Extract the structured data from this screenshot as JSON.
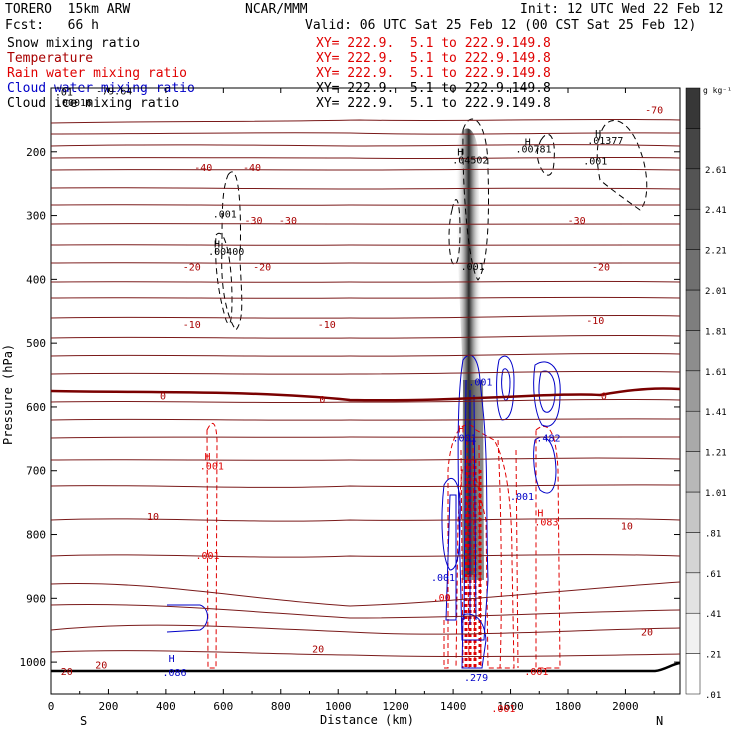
{
  "header": {
    "model": "TORERO  15km ARW",
    "center": "NCAR/MMM",
    "init": "Init: 12 UTC Wed 22 Feb 12",
    "fcst": "Fcst:   66 h",
    "valid": "Valid: 06 UTC Sat 25 Feb 12 (00 CST Sat 25 Feb 12)"
  },
  "fields": [
    {
      "name": "Snow mixing ratio",
      "xy": "XY= 222.9.  5.1 to 222.9.149.8",
      "color": "#000000"
    },
    {
      "name": "Temperature",
      "xy": "XY= 222.9.  5.1 to 222.9.149.8",
      "color": "#a80000"
    },
    {
      "name": "Rain water mixing ratio",
      "xy": "XY= 222.9.  5.1 to 222.9.149.8",
      "color": "#e00000"
    },
    {
      "name": "Cloud water mixing ratio",
      "xy": "XY= 222.9.  5.1 to 222.9.149.8",
      "color": "#0000c8"
    },
    {
      "name": "Cloud ice mixing ratio",
      "xy": "XY= 222.9.  5.1 to 222.9.149.8",
      "color": "#000000"
    }
  ],
  "chart_data": {
    "type": "cross-section",
    "xlabel": "Distance (km)",
    "ylabel": "Pressure (hPa)",
    "xlim": [
      0,
      2190
    ],
    "ylim": [
      1050,
      100
    ],
    "x_ticks": [
      0,
      200,
      400,
      600,
      800,
      1000,
      1200,
      1400,
      1600,
      1800,
      2000
    ],
    "y_ticks": [
      200,
      300,
      400,
      500,
      600,
      700,
      800,
      900,
      1000
    ],
    "left_end": "S",
    "right_end": "N",
    "colorbar": {
      "unit": "g kg⁻¹",
      "levels": [
        ".01",
        ".21",
        ".41",
        ".61",
        ".81",
        "1.01",
        "1.21",
        "1.41",
        "1.61",
        "1.81",
        "2.01",
        "2.21",
        "2.41",
        "2.61"
      ]
    },
    "temperature_contours": [
      {
        "label": "-70",
        "pressure": 135
      },
      {
        "label": "-40",
        "pressure": 230
      },
      {
        "label": "-30",
        "pressure": 313
      },
      {
        "label": "-20",
        "pressure": 387
      },
      {
        "label": "-10",
        "pressure": 476
      },
      {
        "label": "0",
        "pressure": 590
      },
      {
        "label": "10",
        "pressure": 735
      },
      {
        "label": "20",
        "pressure": 915
      }
    ],
    "annotations": [
      {
        "text": "-79.64",
        "x": 220,
        "p": 110,
        "color": "#000000"
      },
      {
        "text": "-70",
        "x": 2100,
        "p": 140,
        "color": "#a80000"
      },
      {
        "text": ".01",
        "x": 45,
        "p": 112,
        "color": "#000000"
      },
      {
        "text": ".00016",
        "x": 80,
        "p": 128,
        "color": "#000000"
      },
      {
        "text": "H",
        "x": 1425,
        "p": 206,
        "color": "#000000"
      },
      {
        "text": ".04502",
        "x": 1460,
        "p": 218,
        "color": "#000000"
      },
      {
        "text": "H",
        "x": 1660,
        "p": 190,
        "color": "#000000"
      },
      {
        "text": ".00781",
        "x": 1680,
        "p": 201,
        "color": "#000000"
      },
      {
        "text": "H",
        "x": 1905,
        "p": 177,
        "color": "#000000"
      },
      {
        "text": ".01377",
        "x": 1930,
        "p": 188,
        "color": "#000000"
      },
      {
        "text": ".001",
        "x": 1895,
        "p": 220,
        "color": "#000000"
      },
      {
        "text": "-40",
        "x": 530,
        "p": 230,
        "color": "#a80000"
      },
      {
        "text": "-40",
        "x": 700,
        "p": 230,
        "color": "#a80000"
      },
      {
        "text": ".001",
        "x": 605,
        "p": 303,
        "color": "#000000"
      },
      {
        "text": "-30",
        "x": 705,
        "p": 313,
        "color": "#a80000"
      },
      {
        "text": "-30",
        "x": 825,
        "p": 313,
        "color": "#a80000"
      },
      {
        "text": "-30",
        "x": 1830,
        "p": 313,
        "color": "#a80000"
      },
      {
        "text": "H",
        "x": 578,
        "p": 350,
        "color": "#000000"
      },
      {
        "text": ".00400",
        "x": 610,
        "p": 362,
        "color": "#000000"
      },
      {
        "text": "-20",
        "x": 490,
        "p": 386,
        "color": "#a80000"
      },
      {
        "text": "-20",
        "x": 735,
        "p": 386,
        "color": "#a80000"
      },
      {
        "text": "-20",
        "x": 1915,
        "p": 386,
        "color": "#a80000"
      },
      {
        "text": ".001",
        "x": 1468,
        "p": 385,
        "color": "#000000"
      },
      {
        "text": "-10",
        "x": 490,
        "p": 476,
        "color": "#a80000"
      },
      {
        "text": "-10",
        "x": 960,
        "p": 476,
        "color": "#a80000"
      },
      {
        "text": "-10",
        "x": 1895,
        "p": 470,
        "color": "#a80000"
      },
      {
        "text": ".001",
        "x": 1495,
        "p": 566,
        "color": "#0000c8"
      },
      {
        "text": "0",
        "x": 390,
        "p": 588,
        "color": "#a80000"
      },
      {
        "text": "0",
        "x": 945,
        "p": 594,
        "color": "#a80000"
      },
      {
        "text": "0",
        "x": 1925,
        "p": 588,
        "color": "#a80000"
      },
      {
        "text": "H",
        "x": 1428,
        "p": 640,
        "color": "#e00000"
      },
      {
        "text": ".001",
        "x": 1440,
        "p": 654,
        "color": "#0000c8"
      },
      {
        "text": ".482",
        "x": 1732,
        "p": 654,
        "color": "#0000c8"
      },
      {
        "text": "H",
        "x": 1465,
        "p": 660,
        "color": "#0000c8"
      },
      {
        "text": "H",
        "x": 545,
        "p": 683,
        "color": "#e00000"
      },
      {
        "text": ".001",
        "x": 560,
        "p": 698,
        "color": "#e00000"
      },
      {
        "text": ".001",
        "x": 1640,
        "p": 746,
        "color": "#0000c8"
      },
      {
        "text": "H",
        "x": 1704,
        "p": 772,
        "color": "#e00000"
      },
      {
        "text": ".083",
        "x": 1725,
        "p": 786,
        "color": "#e00000"
      },
      {
        "text": "10",
        "x": 355,
        "p": 777,
        "color": "#a80000"
      },
      {
        "text": "10",
        "x": 2005,
        "p": 792,
        "color": "#a80000"
      },
      {
        "text": ".001",
        "x": 545,
        "p": 838,
        "color": "#e00000"
      },
      {
        "text": ".001",
        "x": 1365,
        "p": 873,
        "color": "#0000c8"
      },
      {
        "text": ".00",
        "x": 1360,
        "p": 904,
        "color": "#e00000"
      },
      {
        "text": "20",
        "x": 2075,
        "p": 958,
        "color": "#a80000"
      },
      {
        "text": "20",
        "x": 930,
        "p": 985,
        "color": "#a80000"
      },
      {
        "text": "20",
        "x": 175,
        "p": 1010,
        "color": "#a80000"
      },
      {
        "text": "20",
        "x": 55,
        "p": 1020,
        "color": "#a80000"
      },
      {
        "text": "H",
        "x": 420,
        "p": 1000,
        "color": "#0000c8"
      },
      {
        "text": ".086",
        "x": 430,
        "p": 1022,
        "color": "#0000c8"
      },
      {
        "text": ".001",
        "x": 1690,
        "p": 1020,
        "color": "#e00000"
      },
      {
        "text": ".279",
        "x": 1480,
        "p": 1030,
        "color": "#0000c8"
      },
      {
        "text": ".001",
        "x": 1575,
        "p": 1078,
        "color": "#e00000"
      }
    ]
  }
}
